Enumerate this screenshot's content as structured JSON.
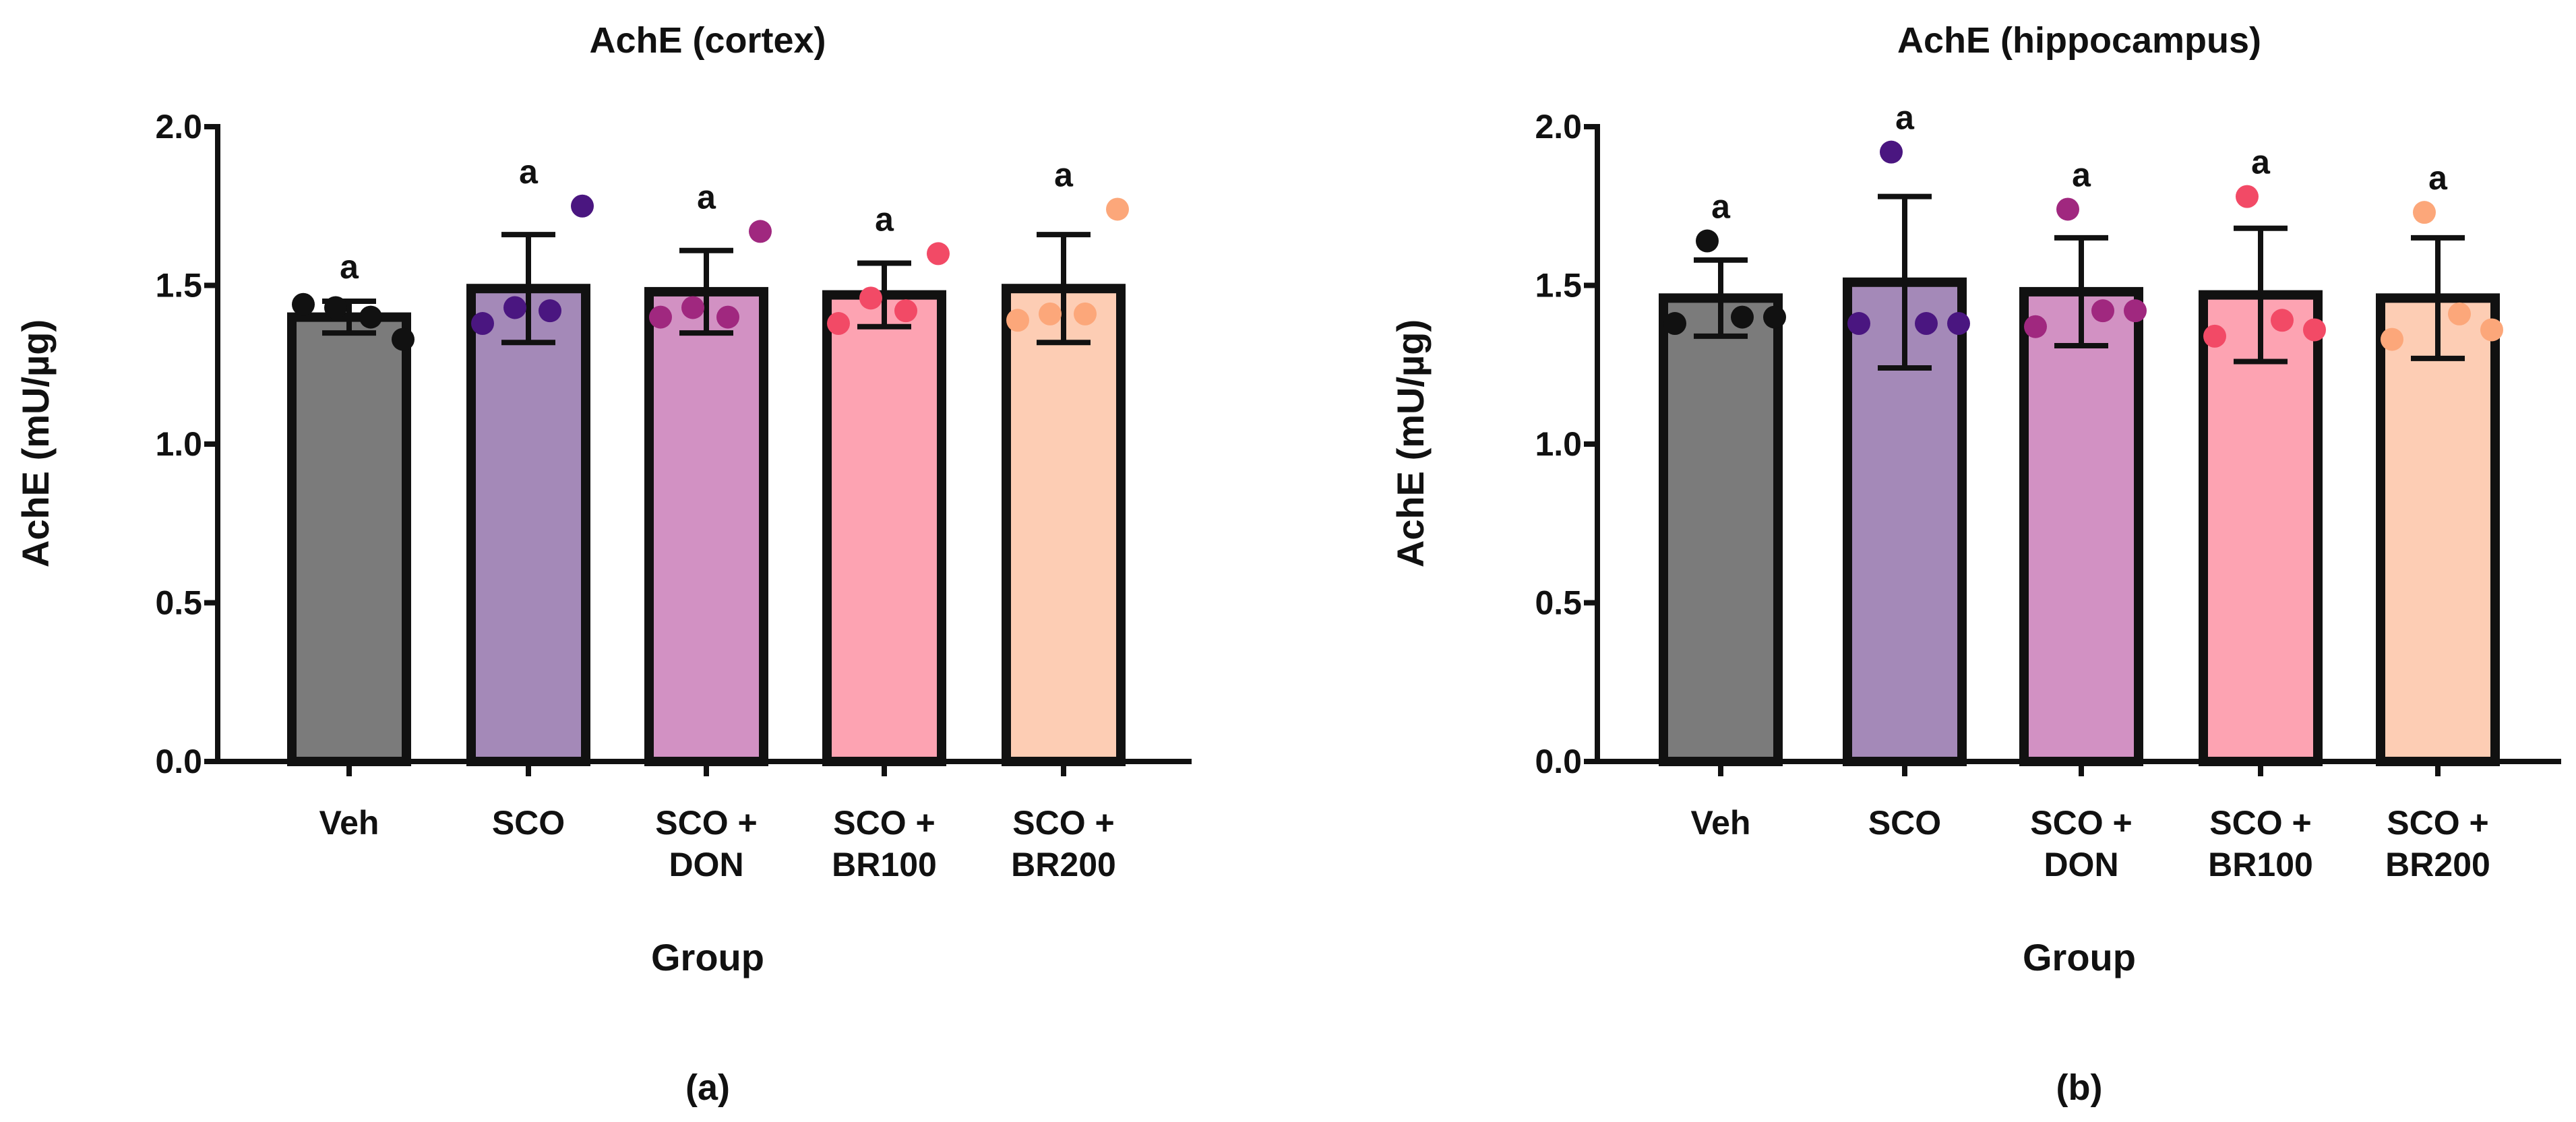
{
  "chart_data": [
    {
      "type": "bar",
      "title": "AchE (cortex)",
      "panel_label": "(a)",
      "xlabel": "Group",
      "ylabel": "AchE (mU/µg)",
      "ylim": [
        0,
        2.0
      ],
      "yticks": [
        "0.0",
        "0.5",
        "1.0",
        "1.5",
        "2.0"
      ],
      "ytick_values": [
        0,
        0.5,
        1.0,
        1.5,
        2.0
      ],
      "categories": [
        [
          "Veh"
        ],
        [
          "SCO"
        ],
        [
          "SCO +",
          "DON"
        ],
        [
          "SCO +",
          "BR100"
        ],
        [
          "SCO +",
          "BR200"
        ]
      ],
      "values": [
        1.4,
        1.49,
        1.48,
        1.47,
        1.49
      ],
      "errors": [
        0.05,
        0.17,
        0.13,
        0.1,
        0.17
      ],
      "points": [
        [
          1.44,
          1.43,
          1.4,
          1.33
        ],
        [
          1.38,
          1.43,
          1.42,
          1.75
        ],
        [
          1.4,
          1.43,
          1.4,
          1.67
        ],
        [
          1.38,
          1.46,
          1.42,
          1.6
        ],
        [
          1.39,
          1.41,
          1.41,
          1.74
        ]
      ],
      "significance": [
        "a",
        "a",
        "a",
        "a",
        "a"
      ]
    },
    {
      "type": "bar",
      "title": "AchE (hippocampus)",
      "panel_label": "(b)",
      "xlabel": "Group",
      "ylabel": "AchE (mU/µg)",
      "ylim": [
        0,
        2.0
      ],
      "yticks": [
        "0.0",
        "0.5",
        "1.0",
        "1.5",
        "2.0"
      ],
      "ytick_values": [
        0,
        0.5,
        1.0,
        1.5,
        2.0
      ],
      "categories": [
        [
          "Veh"
        ],
        [
          "SCO"
        ],
        [
          "SCO +",
          "DON"
        ],
        [
          "SCO +",
          "BR100"
        ],
        [
          "SCO +",
          "BR200"
        ]
      ],
      "values": [
        1.46,
        1.51,
        1.48,
        1.47,
        1.46
      ],
      "errors": [
        0.12,
        0.27,
        0.17,
        0.21,
        0.19
      ],
      "points": [
        [
          1.38,
          1.64,
          1.4,
          1.4
        ],
        [
          1.38,
          1.92,
          1.38,
          1.38
        ],
        [
          1.37,
          1.74,
          1.42,
          1.42
        ],
        [
          1.34,
          1.78,
          1.39,
          1.36
        ],
        [
          1.33,
          1.73,
          1.41,
          1.36
        ]
      ],
      "significance": [
        "a",
        "a",
        "a",
        "a",
        "a"
      ]
    }
  ],
  "colors": {
    "bars": [
      "#7b7b7b",
      "#a489b8",
      "#d291c3",
      "#fda3b2",
      "#fdcdb4"
    ],
    "points": [
      "#111111",
      "#4a1680",
      "#a0287f",
      "#f24a66",
      "#fca77a"
    ],
    "axis": "#111111",
    "text": "#111111"
  }
}
